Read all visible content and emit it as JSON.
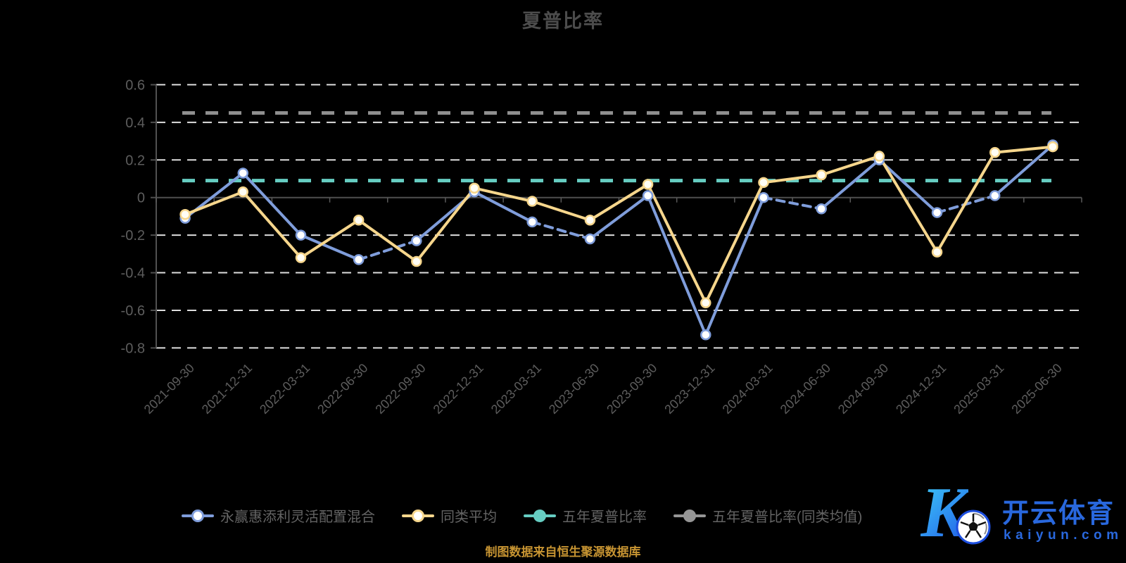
{
  "title": "夏普比率",
  "caption": "制图数据来自恒生聚源数据库",
  "watermark": {
    "logo_letter": "K",
    "brand_cn": "开云体育",
    "brand_domain": "kaiyun.com"
  },
  "legend": {
    "items": [
      {
        "label": "永赢惠添利灵活配置混合",
        "color": "#7f9ddb",
        "marker": "ring"
      },
      {
        "label": "同类平均",
        "color": "#f6d68c",
        "marker": "ring"
      },
      {
        "label": "五年夏普比率",
        "color": "#66cdc2",
        "marker": "fill"
      },
      {
        "label": "五年夏普比率(同类均值)",
        "color": "#969696",
        "marker": "fill"
      }
    ]
  },
  "chart_data": {
    "type": "line",
    "title": "夏普比率",
    "categories": [
      "2021-09-30",
      "2021-12-31",
      "2022-03-31",
      "2022-06-30",
      "2022-09-30",
      "2022-12-31",
      "2023-03-31",
      "2023-06-30",
      "2023-09-30",
      "2023-12-31",
      "2024-03-31",
      "2024-06-30",
      "2024-09-30",
      "2024-12-31",
      "2025-03-31",
      "2025-06-30"
    ],
    "series": [
      {
        "name": "永赢惠添利灵活配置混合",
        "color": "#7f9ddb",
        "marker_fill": "#ffffff",
        "values": [
          -0.11,
          0.13,
          -0.2,
          -0.33,
          -0.23,
          0.03,
          -0.13,
          -0.22,
          0.01,
          -0.73,
          0.0,
          -0.06,
          0.2,
          -0.08,
          0.01,
          0.28
        ],
        "dashed_segments": [
          3,
          6,
          10,
          13
        ]
      },
      {
        "name": "同类平均",
        "color": "#f6d68c",
        "marker_fill": "#fffdf4",
        "values": [
          -0.09,
          0.03,
          -0.32,
          -0.12,
          -0.34,
          0.05,
          -0.02,
          -0.12,
          0.07,
          -0.56,
          0.08,
          0.12,
          0.22,
          -0.29,
          0.24,
          0.27
        ],
        "dashed_segments": []
      }
    ],
    "reference_lines": [
      {
        "name": "五年夏普比率(同类均值)",
        "value": 0.45,
        "color": "#8f8f8f"
      },
      {
        "name": "五年夏普比率",
        "value": 0.09,
        "color": "#66cdc2"
      }
    ],
    "y_ticks": [
      0.6,
      0.4,
      0.2,
      0,
      -0.2,
      -0.4,
      -0.6,
      -0.8
    ],
    "y_tick_labels": [
      "0.6",
      "0.4",
      "0.2",
      "0",
      "-0.2",
      "-0.4",
      "-0.6",
      "-0.8"
    ],
    "ylim": [
      -0.8,
      0.6
    ],
    "grid": "horizontal-dashed-white",
    "legend_position": "bottom"
  }
}
